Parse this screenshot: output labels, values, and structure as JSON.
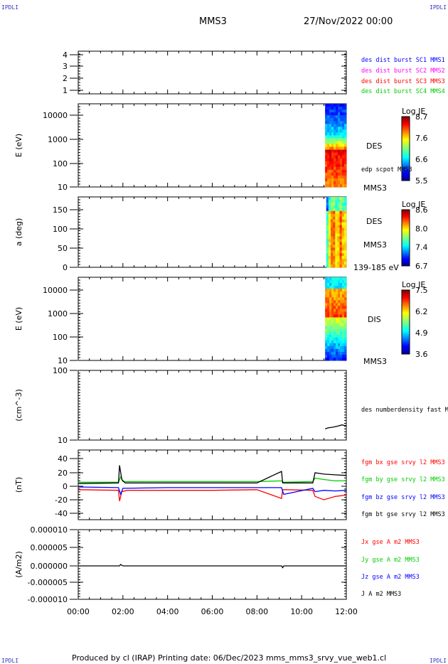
{
  "header": {
    "corner_tl": "IPDLI",
    "corner_tr": "IPDLI",
    "corner_bl": "IPDLI",
    "corner_br": "IPDLI",
    "spacecraft": "MMS3",
    "date": "27/Nov/2022 00:00"
  },
  "footer": "Produced by cl (IRAP)   Printing date: 06/Dec/2023   mms_mms3_srvy_vue_web1.cl",
  "colors": {
    "blue": "#0000ff",
    "magenta": "#ff00ff",
    "red": "#ff0000",
    "green": "#00cc00",
    "black": "#000000",
    "corner": "#3333cc"
  },
  "chart_data": [
    {
      "type": "line",
      "panel": "burst",
      "ylim": [
        0.7,
        4.3
      ],
      "yticks": [
        "4",
        "3",
        "2",
        "1"
      ],
      "legend": [
        {
          "label": "des dist burst SC1 MMS1",
          "color": "#0000ff"
        },
        {
          "label": "des dist burst SC2 MMS2",
          "color": "#ff00ff"
        },
        {
          "label": "des dist burst SC3 MMS3",
          "color": "#ff0000"
        },
        {
          "label": "des dist burst SC4 MMS4",
          "color": "#00cc00"
        }
      ],
      "series": []
    },
    {
      "type": "heatmap",
      "panel": "des_energy",
      "ylabel": "E (eV)",
      "yscale": "log",
      "ylim": [
        10,
        30000
      ],
      "yticks": [
        "10000",
        "1000",
        "100",
        "10"
      ],
      "right_labels": [
        "DES",
        "edp scpot MMS3",
        "MMS3"
      ],
      "colorbar": {
        "title": "Log JE",
        "ticks": [
          "8.7",
          "7.6",
          "6.6",
          "5.5"
        ],
        "range": [
          5.5,
          8.7
        ]
      },
      "data_time_range": [
        11.05,
        12.0
      ]
    },
    {
      "type": "heatmap",
      "panel": "des_pitch",
      "ylabel": "a (deg)",
      "ylim": [
        0,
        185
      ],
      "yticks": [
        "150",
        "100",
        "50",
        "0"
      ],
      "right_labels": [
        "DES",
        "MMS3",
        "139-185 eV"
      ],
      "colorbar": {
        "title": "Log JE",
        "ticks": [
          "8.6",
          "8.0",
          "7.4",
          "6.7"
        ],
        "range": [
          6.7,
          8.6
        ]
      },
      "data_time_range": [
        11.1,
        12.0
      ]
    },
    {
      "type": "heatmap",
      "panel": "dis_energy",
      "ylabel": "E (eV)",
      "yscale": "log",
      "ylim": [
        10,
        25000
      ],
      "yticks": [
        "10000",
        "1000",
        "100",
        "10"
      ],
      "right_labels": [
        "DIS",
        "MMS3"
      ],
      "colorbar": {
        "title": "Log JE",
        "ticks": [
          "7.5",
          "6.2",
          "4.9",
          "3.6"
        ],
        "range": [
          3.6,
          7.5
        ]
      },
      "data_time_range": [
        11.05,
        12.0
      ]
    },
    {
      "type": "line",
      "panel": "density",
      "ylabel": "(cm^-3)",
      "yscale": "log",
      "ylim": [
        10,
        100
      ],
      "yticks": [
        "100",
        "10"
      ],
      "legend": [
        {
          "label": "des numberdensity fast M",
          "color": "#000000"
        }
      ],
      "series": [
        {
          "x": [
            11.05,
            11.2,
            11.4,
            11.6,
            11.8,
            12.0
          ],
          "y": [
            14.5,
            15.0,
            15.3,
            15.8,
            16.5,
            16.0
          ]
        }
      ]
    },
    {
      "type": "line",
      "panel": "fgm",
      "ylabel": "(nT)",
      "ylim": [
        -50,
        50
      ],
      "yticks": [
        "40",
        "20",
        "0",
        "-20",
        "-40"
      ],
      "legend": [
        {
          "label": "fgm bx gse srvy l2 MMS3",
          "color": "#ff0000"
        },
        {
          "label": "fgm by gse srvy l2 MMS3",
          "color": "#00cc00"
        },
        {
          "label": "fgm bz gse srvy l2 MMS3",
          "color": "#0000ff"
        },
        {
          "label": "fgm bt gse srvy l2 MMS3",
          "color": "#000000"
        }
      ],
      "series": [
        {
          "name": "bx",
          "color": "#ff0000",
          "x": [
            0,
            1.8,
            1.85,
            1.95,
            2.2,
            4,
            6,
            8,
            9.1,
            9.15,
            9.3,
            10.5,
            10.6,
            11.0,
            11.5,
            12.0
          ],
          "y": [
            -5,
            -6,
            -22,
            -8,
            -6,
            -6,
            -6,
            -5,
            -18,
            -5,
            -5,
            -6,
            -15,
            -20,
            -15,
            -13
          ]
        },
        {
          "name": "by",
          "color": "#00cc00",
          "x": [
            0,
            1.8,
            1.9,
            2.0,
            4,
            6,
            8,
            9.1,
            9.2,
            10.5,
            10.6,
            11.0,
            11.5,
            12.0
          ],
          "y": [
            6,
            6,
            14,
            7,
            7,
            7,
            7,
            8,
            6,
            7,
            12,
            10,
            8,
            8
          ]
        },
        {
          "name": "bz",
          "color": "#0000ff",
          "x": [
            0,
            1.8,
            1.9,
            2.0,
            4,
            6,
            8,
            9.1,
            9.2,
            10.5,
            10.6,
            11.0,
            11.5,
            12.0
          ],
          "y": [
            -1,
            -2,
            -12,
            -3,
            -2,
            -2,
            -2,
            -2,
            -12,
            -3,
            -8,
            -6,
            -7,
            -6
          ]
        },
        {
          "name": "bt",
          "color": "#000000",
          "x": [
            0,
            1.8,
            1.85,
            1.95,
            2.1,
            4,
            6,
            8,
            9.1,
            9.15,
            9.25,
            10.5,
            10.6,
            11.0,
            11.5,
            12.0
          ],
          "y": [
            4,
            5,
            31,
            10,
            5,
            5,
            5,
            5,
            22,
            5,
            5,
            5,
            20,
            18,
            17,
            16
          ]
        }
      ]
    },
    {
      "type": "line",
      "panel": "current",
      "ylabel": "(A/m2)",
      "ylim": [
        -1e-05,
        1e-05
      ],
      "yticks": [
        "0.000010",
        "0.000005",
        "0.000000",
        "-0.000005",
        "-0.000010"
      ],
      "legend": [
        {
          "label": "Jx gse A m2 MMS3",
          "color": "#ff0000"
        },
        {
          "label": "Jy gse A m2 MMS3",
          "color": "#00cc00"
        },
        {
          "label": "Jz gse A m2 MMS3",
          "color": "#0000ff"
        },
        {
          "label": "J A m2 MMS3",
          "color": "#000000"
        }
      ],
      "series": [
        {
          "name": "J",
          "color": "#000000",
          "x": [
            0,
            1.85,
            1.9,
            2.0,
            9.1,
            9.15,
            9.2,
            12.0
          ],
          "y": [
            0,
            0,
            4e-07,
            0,
            0,
            -5e-07,
            0,
            0
          ]
        }
      ]
    }
  ],
  "xaxis": {
    "xlim": [
      0,
      12
    ],
    "ticks": [
      "00:00",
      "02:00",
      "04:00",
      "06:00",
      "08:00",
      "10:00",
      "12:00"
    ]
  }
}
